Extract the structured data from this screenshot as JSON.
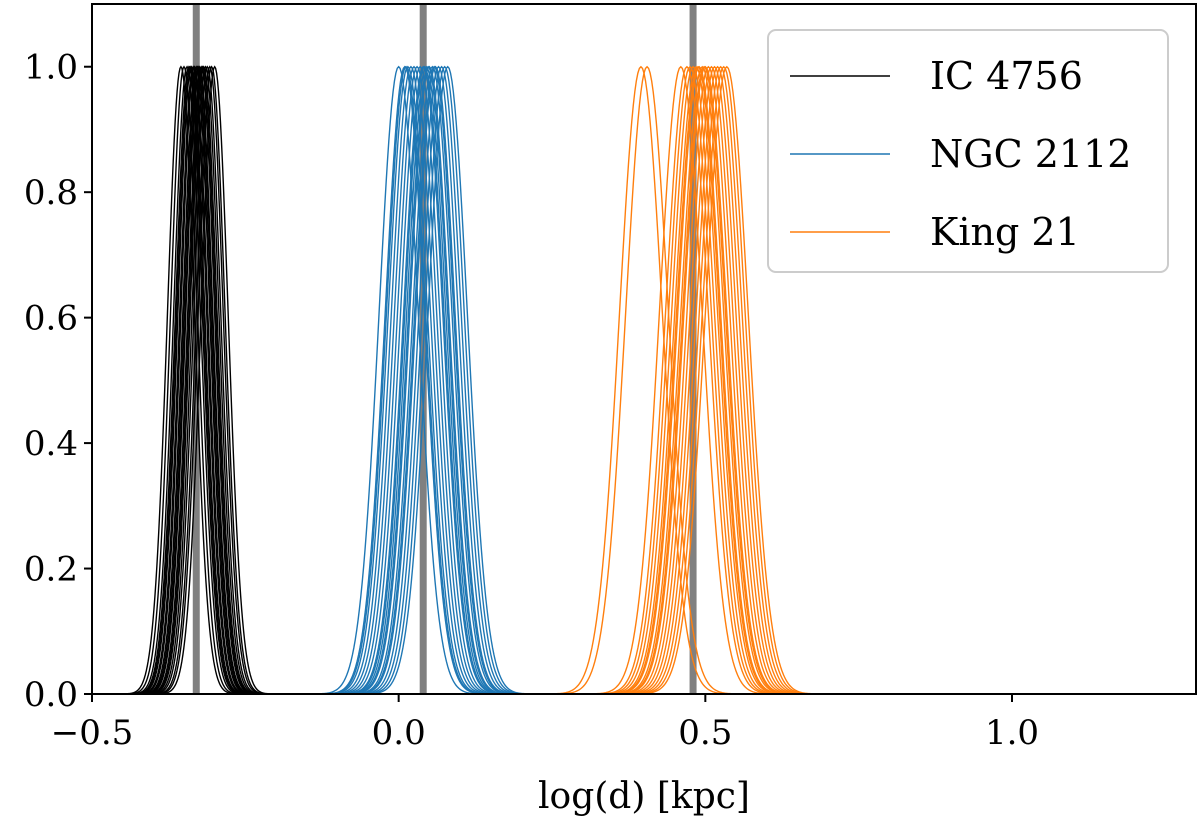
{
  "chart_data": {
    "type": "line",
    "title": "",
    "xlabel": "log(d) [kpc]",
    "ylabel": "",
    "xlim": [
      -0.5,
      1.3
    ],
    "ylim": [
      0.0,
      1.1
    ],
    "x_ticks": [
      {
        "value": -0.5,
        "label": "−0.5"
      },
      {
        "value": 0.0,
        "label": "0.0"
      },
      {
        "value": 0.5,
        "label": "0.5"
      },
      {
        "value": 1.0,
        "label": "1.0"
      }
    ],
    "y_ticks": [
      {
        "value": 0.0,
        "label": "0.0"
      },
      {
        "value": 0.2,
        "label": "0.2"
      },
      {
        "value": 0.4,
        "label": "0.4"
      },
      {
        "value": 0.6,
        "label": "0.6"
      },
      {
        "value": 0.8,
        "label": "0.8"
      },
      {
        "value": 1.0,
        "label": "1.0"
      }
    ],
    "legend_position": "top-right",
    "reference_lines": [
      {
        "x": -0.33,
        "color": "#808080"
      },
      {
        "x": 0.04,
        "color": "#808080"
      },
      {
        "x": 0.48,
        "color": "#808080"
      }
    ],
    "series": [
      {
        "name": "IC 4756",
        "color": "#000000",
        "sigma": 0.022,
        "peak_centers": [
          -0.355,
          -0.35,
          -0.345,
          -0.342,
          -0.338,
          -0.335,
          -0.333,
          -0.33,
          -0.328,
          -0.325,
          -0.322,
          -0.32,
          -0.318,
          -0.315,
          -0.312,
          -0.308,
          -0.305,
          -0.3,
          -0.34,
          -0.326
        ]
      },
      {
        "name": "NGC 2112",
        "color": "#1f77b4",
        "sigma": 0.032,
        "peak_centers": [
          0.0,
          0.01,
          0.015,
          0.02,
          0.025,
          0.03,
          0.035,
          0.04,
          0.042,
          0.045,
          0.05,
          0.055,
          0.058,
          0.06,
          0.065,
          0.07,
          0.075,
          0.08,
          0.012,
          0.048
        ]
      },
      {
        "name": "King 21",
        "color": "#ff7f0e",
        "sigma": 0.035,
        "peak_centers": [
          0.395,
          0.405,
          0.46,
          0.47,
          0.475,
          0.48,
          0.485,
          0.49,
          0.495,
          0.5,
          0.505,
          0.51,
          0.515,
          0.52,
          0.525,
          0.53,
          0.535,
          0.488,
          0.498
        ]
      }
    ]
  }
}
